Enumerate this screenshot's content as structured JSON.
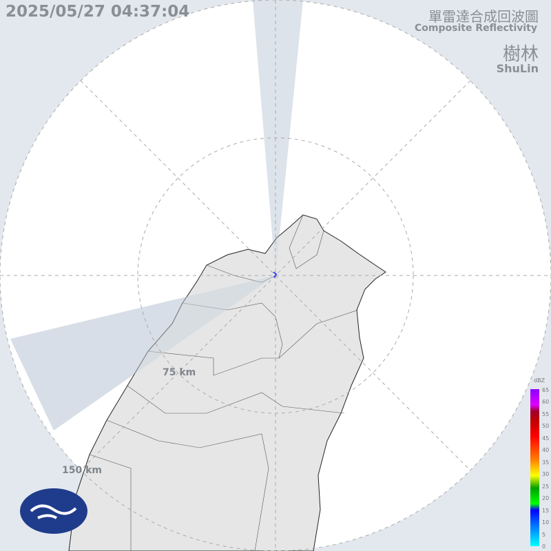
{
  "timestamp": "2025/05/27 04:37:04",
  "title_zh": "單雷達合成回波圖",
  "title_en": "Composite Reflectivity",
  "station_zh": "樹林",
  "station_en": "ShuLin",
  "range_labels": [
    "75 km",
    "150 km"
  ],
  "legend": {
    "unit": "dBZ",
    "ticks": [
      "65",
      "60",
      "55",
      "50",
      "45",
      "40",
      "35",
      "30",
      "25",
      "20",
      "15",
      "10",
      "5",
      "0"
    ]
  },
  "colors": {
    "background": "#e3e8ee",
    "coverage": "#ffffff",
    "land": "#e6e6e6",
    "border": "#222222"
  },
  "logo": "cwa-logo-icon"
}
